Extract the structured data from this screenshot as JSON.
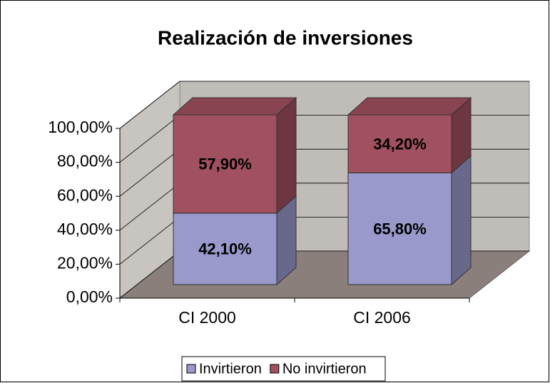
{
  "chart_data": {
    "type": "bar3d_stacked",
    "title": "Realización de inversiones",
    "categories": [
      "CI 2000",
      "CI 2006"
    ],
    "series": [
      {
        "name": "Invirtieron",
        "color": "#9999cc",
        "values": [
          42.1,
          65.8
        ],
        "value_labels": [
          "42,10%",
          "65,80%"
        ]
      },
      {
        "name": "No invirtieron",
        "color": "#a0505e",
        "values": [
          57.9,
          34.2
        ],
        "value_labels": [
          "57,90%",
          "34,20%"
        ]
      }
    ],
    "ylim": [
      0,
      100
    ],
    "yticks": [
      {
        "value": 0,
        "label": "0,00%"
      },
      {
        "value": 20,
        "label": "20,00%"
      },
      {
        "value": 40,
        "label": "40,00%"
      },
      {
        "value": 60,
        "label": "60,00%"
      },
      {
        "value": 80,
        "label": "80,00%"
      },
      {
        "value": 100,
        "label": "100,00%"
      }
    ],
    "grid": true,
    "legend": "bottom"
  }
}
